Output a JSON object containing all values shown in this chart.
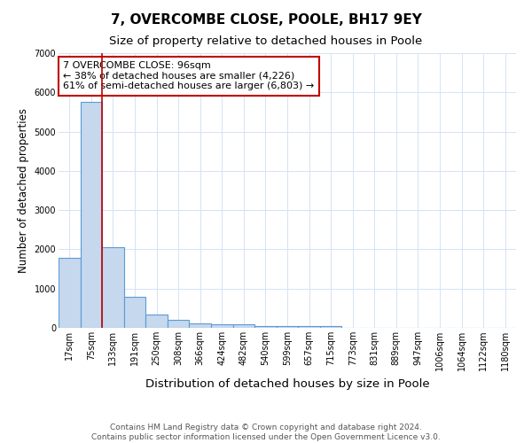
{
  "title": "7, OVERCOMBE CLOSE, POOLE, BH17 9EY",
  "subtitle": "Size of property relative to detached houses in Poole",
  "xlabel": "Distribution of detached houses by size in Poole",
  "ylabel": "Number of detached properties",
  "categories": [
    "17sqm",
    "75sqm",
    "133sqm",
    "191sqm",
    "250sqm",
    "308sqm",
    "366sqm",
    "424sqm",
    "482sqm",
    "540sqm",
    "599sqm",
    "657sqm",
    "715sqm",
    "773sqm",
    "831sqm",
    "889sqm",
    "947sqm",
    "1006sqm",
    "1064sqm",
    "1122sqm",
    "1180sqm"
  ],
  "values": [
    1780,
    5750,
    2050,
    800,
    340,
    200,
    110,
    80,
    80,
    55,
    35,
    55,
    45,
    0,
    0,
    0,
    0,
    0,
    0,
    0,
    0
  ],
  "bar_color": "#c5d8ed",
  "bar_edge_color": "#5b9bd5",
  "bar_edge_width": 0.8,
  "red_line_x": 1.5,
  "red_line_color": "#c00000",
  "annotation_text": "7 OVERCOMBE CLOSE: 96sqm\n← 38% of detached houses are smaller (4,226)\n61% of semi-detached houses are larger (6,803) →",
  "annotation_box_color": "#c00000",
  "ylim": [
    0,
    7000
  ],
  "yticks": [
    0,
    1000,
    2000,
    3000,
    4000,
    5000,
    6000,
    7000
  ],
  "grid_color": "#d4e3f5",
  "background_color": "#ffffff",
  "footnote": "Contains HM Land Registry data © Crown copyright and database right 2024.\nContains public sector information licensed under the Open Government Licence v3.0.",
  "title_fontsize": 11,
  "subtitle_fontsize": 9.5,
  "xlabel_fontsize": 9.5,
  "ylabel_fontsize": 8.5,
  "tick_fontsize": 7,
  "annotation_fontsize": 8,
  "footnote_fontsize": 6.5
}
